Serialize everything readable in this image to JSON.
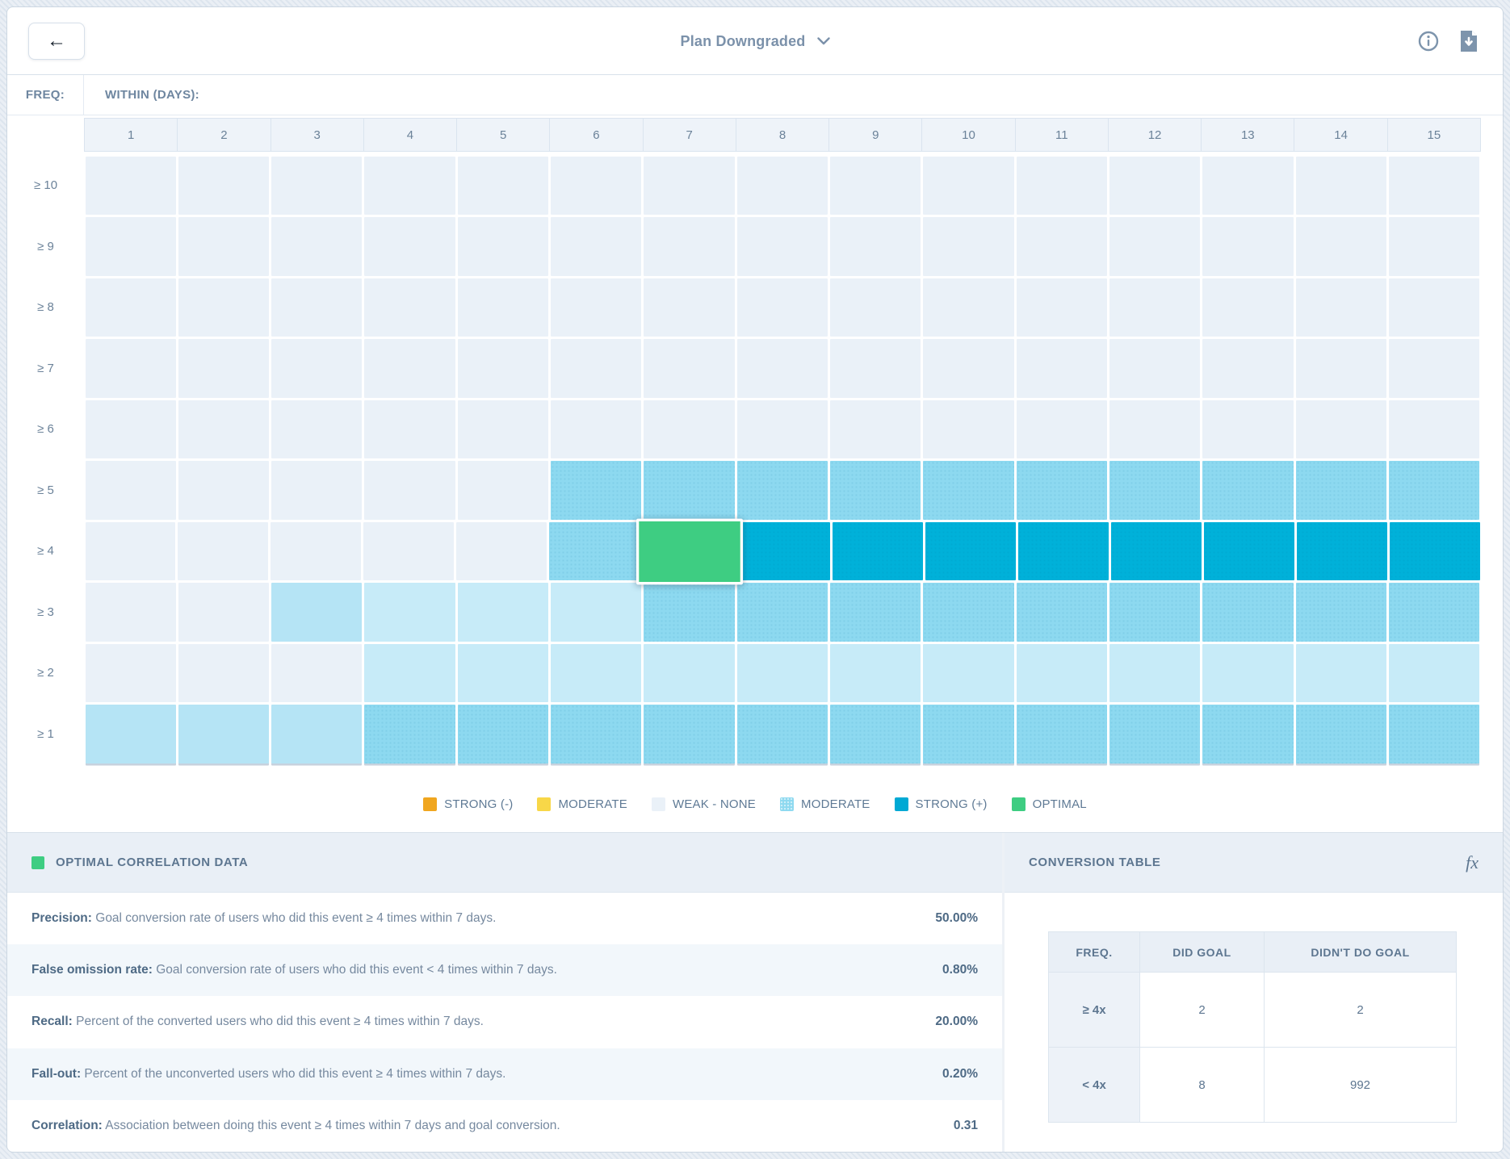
{
  "header": {
    "back_label": "←",
    "title": "Plan Downgraded",
    "icons": {
      "info": "info-icon",
      "download": "download-icon"
    }
  },
  "matrix": {
    "freq_label": "FREQ:",
    "within_label": "WITHIN (DAYS):",
    "columns": [
      "1",
      "2",
      "3",
      "4",
      "5",
      "6",
      "7",
      "8",
      "9",
      "10",
      "11",
      "12",
      "13",
      "14",
      "15"
    ],
    "rows": [
      {
        "label": "≥ 10",
        "cells": [
          "weak",
          "weak",
          "weak",
          "weak",
          "weak",
          "weak",
          "weak",
          "weak",
          "weak",
          "weak",
          "weak",
          "weak",
          "weak",
          "weak",
          "weak"
        ]
      },
      {
        "label": "≥ 9",
        "cells": [
          "weak",
          "weak",
          "weak",
          "weak",
          "weak",
          "weak",
          "weak",
          "weak",
          "weak",
          "weak",
          "weak",
          "weak",
          "weak",
          "weak",
          "weak"
        ]
      },
      {
        "label": "≥ 8",
        "cells": [
          "weak",
          "weak",
          "weak",
          "weak",
          "weak",
          "weak",
          "weak",
          "weak",
          "weak",
          "weak",
          "weak",
          "weak",
          "weak",
          "weak",
          "weak"
        ]
      },
      {
        "label": "≥ 7",
        "cells": [
          "weak",
          "weak",
          "weak",
          "weak",
          "weak",
          "weak",
          "weak",
          "weak",
          "weak",
          "weak",
          "weak",
          "weak",
          "weak",
          "weak",
          "weak"
        ]
      },
      {
        "label": "≥ 6",
        "cells": [
          "weak",
          "weak",
          "weak",
          "weak",
          "weak",
          "weak",
          "weak",
          "weak",
          "weak",
          "weak",
          "weak",
          "weak",
          "weak",
          "weak",
          "weak"
        ]
      },
      {
        "label": "≥ 5",
        "cells": [
          "weak",
          "weak",
          "weak",
          "weak",
          "weak",
          "moderate",
          "moderate",
          "moderate",
          "moderate",
          "moderate",
          "moderate",
          "moderate",
          "moderate",
          "moderate",
          "moderate"
        ]
      },
      {
        "label": "≥ 4",
        "cells": [
          "weak",
          "weak",
          "weak",
          "weak",
          "weak",
          "moderate",
          "optimal",
          "strong",
          "strong",
          "strong",
          "strong",
          "strong",
          "strong",
          "strong",
          "strong"
        ]
      },
      {
        "label": "≥ 3",
        "cells": [
          "weak",
          "weak",
          "light",
          "pale",
          "pale",
          "pale",
          "moderate",
          "moderate",
          "moderate",
          "moderate",
          "moderate",
          "moderate",
          "moderate",
          "moderate",
          "moderate"
        ]
      },
      {
        "label": "≥ 2",
        "cells": [
          "weak",
          "weak",
          "weak",
          "pale",
          "pale",
          "pale",
          "pale",
          "pale",
          "pale",
          "pale",
          "pale",
          "pale",
          "pale",
          "pale",
          "pale"
        ]
      },
      {
        "label": "≥ 1",
        "cells": [
          "light",
          "light",
          "light",
          "moderate",
          "moderate",
          "moderate",
          "moderate",
          "moderate",
          "moderate",
          "moderate",
          "moderate",
          "moderate",
          "moderate",
          "moderate",
          "moderate"
        ]
      }
    ],
    "selected_cell": {
      "row": "≥ 4",
      "column": "7"
    }
  },
  "palette": {
    "weak": "#eaf1f8",
    "pale": "#c7ebf8",
    "light": "#b5e4f5",
    "moderate": "#8dd9f0",
    "strong": "#00b1d9",
    "optimal": "#3ecd82",
    "strong_neg": "#f0a61f",
    "moderate_yellow": "#f8d748"
  },
  "legend": [
    {
      "label": "STRONG (-)",
      "color": "#f0a61f",
      "textured": false
    },
    {
      "label": "MODERATE",
      "color": "#f8d748",
      "textured": false
    },
    {
      "label": "WEAK - NONE",
      "color": "#eaf1f8",
      "textured": false
    },
    {
      "label": "MODERATE",
      "color": "#8dd9f0",
      "textured": true
    },
    {
      "label": "STRONG (+)",
      "color": "#00a9d4",
      "textured": false
    },
    {
      "label": "OPTIMAL",
      "color": "#3ecd82",
      "textured": false
    }
  ],
  "optimal_panel": {
    "title": "OPTIMAL CORRELATION DATA",
    "swatch_color": "#3ecd82",
    "rows": [
      {
        "label": "Precision:",
        "description": "Goal conversion rate of users who did this event ≥ 4 times within 7 days.",
        "value": "50.00%"
      },
      {
        "label": "False omission rate:",
        "description": "Goal conversion rate of users who did this event < 4 times within 7 days.",
        "value": "0.80%"
      },
      {
        "label": "Recall:",
        "description": "Percent of the converted users who did this event ≥ 4 times within 7 days.",
        "value": "20.00%"
      },
      {
        "label": "Fall-out:",
        "description": "Percent of the unconverted users who did this event ≥ 4 times within 7 days.",
        "value": "0.20%"
      },
      {
        "label": "Correlation:",
        "description": "Association between doing this event ≥ 4 times within 7 days and goal conversion.",
        "value": "0.31"
      }
    ]
  },
  "conversion_panel": {
    "title": "CONVERSION TABLE",
    "fx_label": "fx",
    "headers": [
      "FREQ.",
      "DID GOAL",
      "DIDN'T DO GOAL"
    ],
    "rows": [
      {
        "freq": "≥ 4x",
        "did": "2",
        "didnt": "2"
      },
      {
        "freq": "< 4x",
        "did": "8",
        "didnt": "992"
      }
    ]
  }
}
